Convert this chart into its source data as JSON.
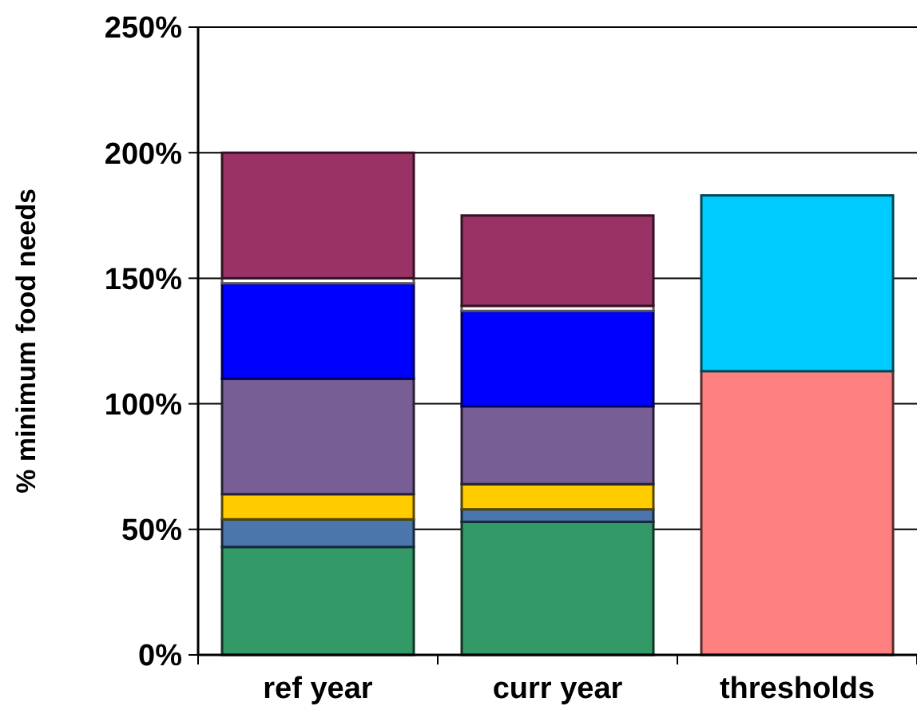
{
  "chart_data": {
    "type": "bar",
    "stacked": true,
    "ylabel": "% minimum food needs",
    "categories": [
      "ref year",
      "curr year",
      "thresholds"
    ],
    "series": [
      {
        "color": "#339966",
        "values": [
          43,
          53,
          null
        ]
      },
      {
        "color": "#4a76ac",
        "values": [
          11,
          5,
          null
        ]
      },
      {
        "color": "#ffcc00",
        "values": [
          10,
          10,
          null
        ]
      },
      {
        "color": "#775f96",
        "values": [
          46,
          31,
          null
        ]
      },
      {
        "color": "#0000ff",
        "values": [
          38,
          38,
          null
        ]
      },
      {
        "color": "#ffffff",
        "values": [
          2,
          2,
          null
        ]
      },
      {
        "color": "#993366",
        "values": [
          50,
          36,
          null
        ]
      },
      {
        "color": "#ff8080",
        "values": [
          null,
          null,
          113
        ]
      },
      {
        "color": "#00ccff",
        "values": [
          null,
          null,
          70
        ]
      }
    ],
    "ylim": [
      0,
      250
    ],
    "yticks": [
      {
        "value": 0,
        "label": "0%"
      },
      {
        "value": 50,
        "label": "50%"
      },
      {
        "value": 100,
        "label": "100%"
      },
      {
        "value": 150,
        "label": "150%"
      },
      {
        "value": 200,
        "label": "200%"
      },
      {
        "value": 250,
        "label": "250%"
      }
    ],
    "grid": "y"
  }
}
